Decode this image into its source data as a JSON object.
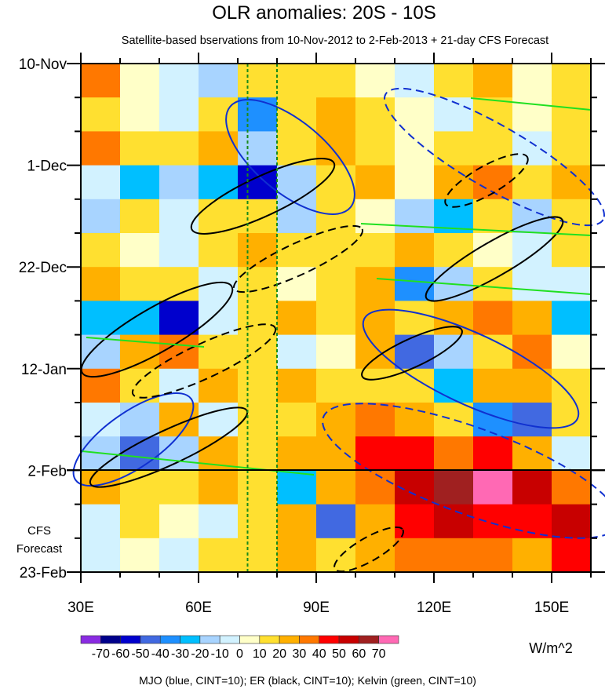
{
  "chart_data": {
    "type": "heatmap",
    "title": "OLR anomalies: 20S - 10S",
    "subtitle": "Satellite-based bservations from 10-Nov-2012 to 2-Feb-2013 + 21-day CFS Forecast",
    "xlabel": "",
    "ylabel": "",
    "xlim": [
      30,
      160
    ],
    "x_ticks": [
      "30E",
      "60E",
      "90E",
      "120E",
      "150E"
    ],
    "x_tick_values": [
      30,
      60,
      90,
      120,
      150
    ],
    "ylim_days_from_start": [
      0,
      105
    ],
    "y_ticks": [
      "10-Nov",
      "1-Dec",
      "22-Dec",
      "12-Jan",
      "2-Feb",
      "23-Feb"
    ],
    "y_tick_days": [
      0,
      21,
      42,
      63,
      84,
      105
    ],
    "forecast_label": [
      "CFS",
      "Forecast"
    ],
    "forecast_start_day": 84,
    "reference_lines_lon": [
      72.5,
      80
    ],
    "units": "W/m^2",
    "colorbar_labels": [
      "-70",
      "-60",
      "-50",
      "-40",
      "-30",
      "-20",
      "-10",
      "0",
      "10",
      "20",
      "30",
      "40",
      "50",
      "60",
      "70"
    ],
    "colorbar_colors": [
      "#8a2be2",
      "#00008b",
      "#0000cd",
      "#4169e1",
      "#1e90ff",
      "#00bfff",
      "#a8d4ff",
      "#d2f2ff",
      "#ffffc8",
      "#ffe030",
      "#ffb000",
      "#ff7800",
      "#ff0000",
      "#c80000",
      "#a02020",
      "#ff69b4"
    ],
    "contour_legend": "MJO (blue, CINT=10); ER (black, CINT=10); Kelvin (green, CINT=10)",
    "grid_lon_centers": [
      35,
      45,
      55,
      65,
      75,
      85,
      95,
      105,
      115,
      125,
      135,
      145,
      155
    ],
    "grid_day_step": 7,
    "values": [
      [
        30,
        5,
        -10,
        -20,
        10,
        10,
        10,
        0,
        -10,
        10,
        20,
        0,
        10
      ],
      [
        10,
        0,
        -10,
        10,
        -40,
        10,
        20,
        10,
        0,
        -10,
        10,
        0,
        10
      ],
      [
        30,
        10,
        10,
        20,
        -20,
        10,
        20,
        10,
        0,
        10,
        10,
        -10,
        10
      ],
      [
        -10,
        -30,
        -20,
        -30,
        -60,
        -20,
        10,
        20,
        0,
        20,
        30,
        10,
        20
      ],
      [
        -20,
        10,
        -10,
        10,
        10,
        -20,
        10,
        0,
        -20,
        -30,
        10,
        -20,
        10
      ],
      [
        10,
        0,
        -10,
        10,
        20,
        10,
        10,
        10,
        20,
        10,
        0,
        -10,
        10
      ],
      [
        20,
        10,
        10,
        -10,
        10,
        0,
        10,
        20,
        -40,
        -20,
        10,
        -10,
        -10
      ],
      [
        -30,
        -30,
        -60,
        -10,
        10,
        20,
        10,
        20,
        10,
        20,
        30,
        20,
        -30
      ],
      [
        -20,
        20,
        30,
        10,
        10,
        -10,
        0,
        20,
        -50,
        -20,
        10,
        30,
        0
      ],
      [
        30,
        10,
        -10,
        20,
        10,
        20,
        10,
        10,
        10,
        -30,
        20,
        20,
        10
      ],
      [
        -10,
        -20,
        20,
        -10,
        10,
        10,
        20,
        30,
        20,
        10,
        -40,
        -50,
        10
      ],
      [
        -20,
        -50,
        -20,
        20,
        10,
        20,
        20,
        40,
        40,
        30,
        40,
        20,
        -10
      ],
      [
        20,
        10,
        10,
        20,
        10,
        -30,
        20,
        30,
        50,
        60,
        70,
        50,
        30
      ],
      [
        -10,
        10,
        0,
        -10,
        10,
        20,
        -50,
        20,
        40,
        50,
        40,
        40,
        50
      ],
      [
        -10,
        0,
        -10,
        10,
        10,
        20,
        10,
        20,
        30,
        30,
        30,
        20,
        40
      ]
    ]
  }
}
